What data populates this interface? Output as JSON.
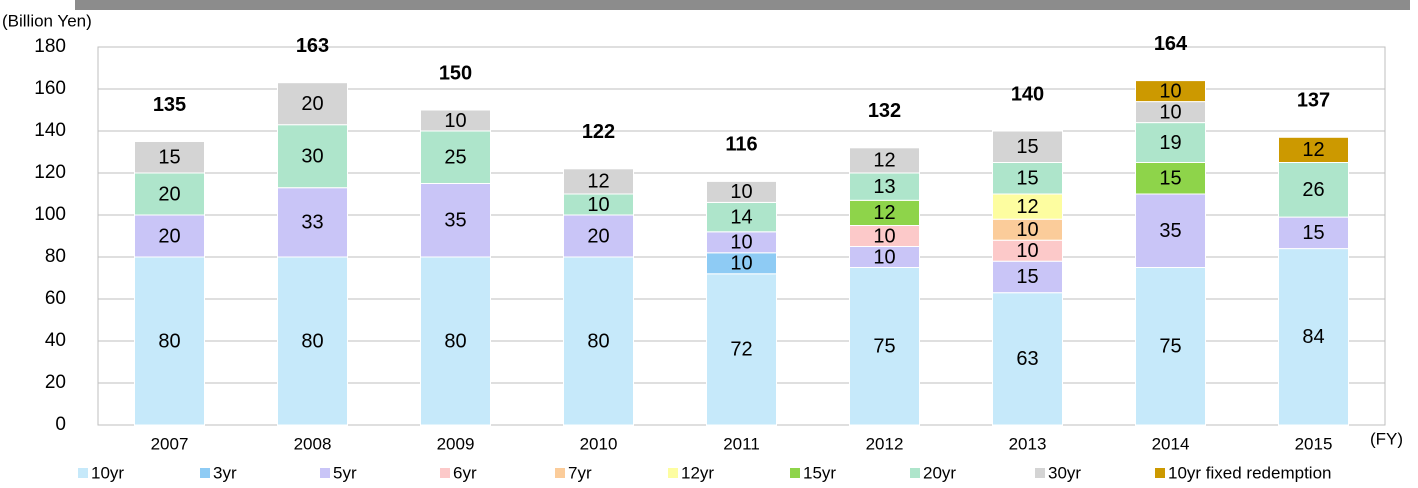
{
  "chart_data": {
    "type": "stacked_bar",
    "y_label": "(Billion Yen)",
    "x_label": "(FY)",
    "categories": [
      "2007",
      "2008",
      "2009",
      "2010",
      "2011",
      "2012",
      "2013",
      "2014",
      "2015"
    ],
    "series": [
      {
        "name": "10yr",
        "color": "#c6e9fa",
        "values": [
          80,
          80,
          80,
          80,
          72,
          75,
          63,
          75,
          84
        ]
      },
      {
        "name": "3yr",
        "color": "#8ecbf4",
        "values": [
          null,
          null,
          null,
          null,
          10,
          null,
          null,
          null,
          null
        ]
      },
      {
        "name": "5yr",
        "color": "#c9c5f7",
        "values": [
          20,
          33,
          35,
          20,
          10,
          10,
          15,
          35,
          15
        ]
      },
      {
        "name": "6yr",
        "color": "#fcc9c9",
        "values": [
          null,
          null,
          null,
          null,
          null,
          10,
          10,
          null,
          null
        ]
      },
      {
        "name": "7yr",
        "color": "#fbcc9a",
        "values": [
          null,
          null,
          null,
          null,
          null,
          null,
          10,
          null,
          null
        ]
      },
      {
        "name": "12yr",
        "color": "#fdfda0",
        "values": [
          null,
          null,
          null,
          null,
          null,
          null,
          12,
          null,
          null
        ]
      },
      {
        "name": "15yr",
        "color": "#8ed44a",
        "values": [
          null,
          null,
          null,
          null,
          null,
          12,
          null,
          15,
          null
        ]
      },
      {
        "name": "20yr",
        "color": "#aee5cb",
        "values": [
          20,
          30,
          25,
          10,
          14,
          13,
          15,
          19,
          26
        ]
      },
      {
        "name": "30yr",
        "color": "#d4d4d4",
        "values": [
          15,
          20,
          10,
          12,
          10,
          12,
          15,
          10,
          null
        ]
      },
      {
        "name": "10yr fixed redemption",
        "color": "#cc9900",
        "values": [
          null,
          null,
          null,
          null,
          null,
          null,
          null,
          10,
          12
        ]
      }
    ],
    "totals": [
      135,
      163,
      150,
      122,
      116,
      132,
      140,
      164,
      137
    ],
    "ylim": [
      0,
      180
    ],
    "yticks": [
      0,
      20,
      40,
      60,
      80,
      100,
      120,
      140,
      160,
      180
    ],
    "grid": true
  }
}
